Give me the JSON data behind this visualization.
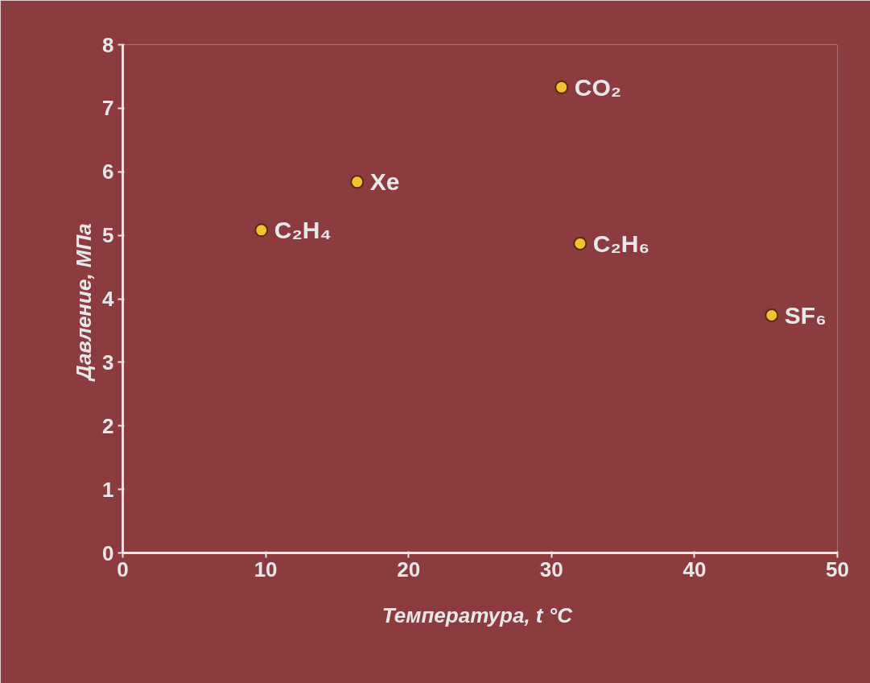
{
  "chart_data": {
    "type": "scatter",
    "xlabel": "Температура,  t °C",
    "ylabel": "Давление,  МПа",
    "x": [
      9.7,
      16.4,
      30.7,
      32.0,
      45.4
    ],
    "series": [
      {
        "color": "#f2c12e",
        "values": [
          5.08,
          5.84,
          7.33,
          4.87,
          3.74
        ]
      }
    ],
    "marker": "circle",
    "xlim": [
      0,
      50
    ],
    "ylim": [
      0,
      8
    ],
    "xticks": [
      0,
      10,
      20,
      30,
      40,
      50
    ],
    "yticks": [
      0,
      1,
      2,
      3,
      4,
      5,
      6,
      7,
      8
    ],
    "grid": false,
    "annotations": [
      {
        "text": "C₂H₄",
        "x": 9.7,
        "y": 5.08
      },
      {
        "text": "Xe",
        "x": 16.4,
        "y": 5.84
      },
      {
        "text": "CO₂",
        "x": 30.7,
        "y": 7.33
      },
      {
        "text": "C₂H₆",
        "x": 32.0,
        "y": 4.87
      },
      {
        "text": "SF₆",
        "x": 45.4,
        "y": 3.74
      }
    ]
  }
}
